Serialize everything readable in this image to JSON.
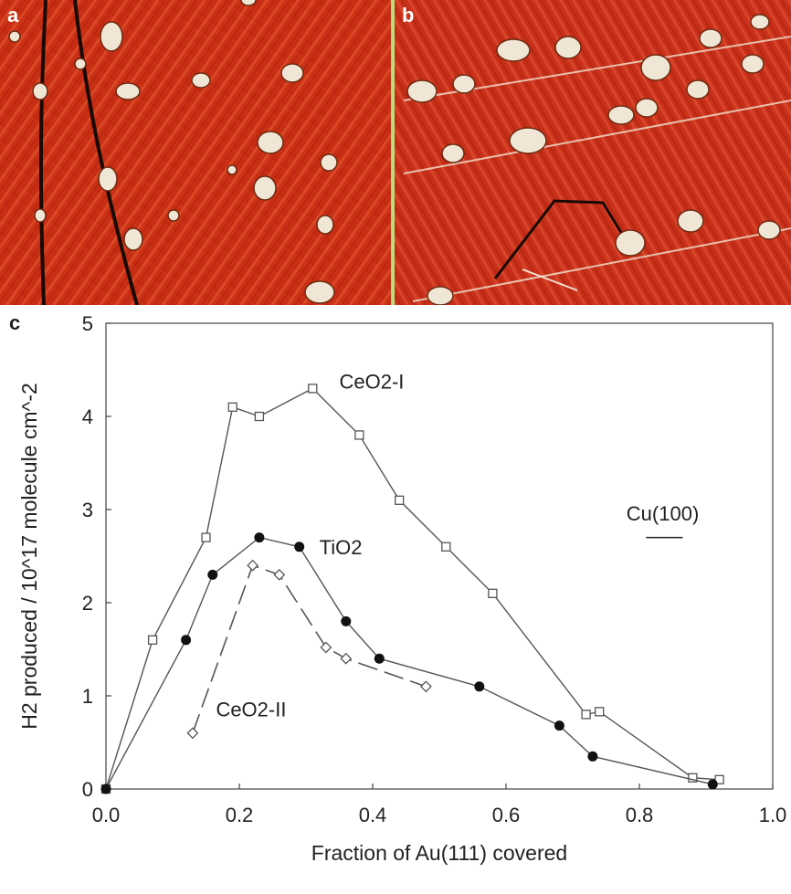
{
  "panels": {
    "a": "a",
    "b": "b",
    "c": "c"
  },
  "chart_data": {
    "type": "line",
    "xlabel": "Fraction of Au(111) covered",
    "ylabel": "H2 produced / 10^17 molecule cm^-2",
    "xlim": [
      0,
      1
    ],
    "ylim": [
      0,
      5
    ],
    "xticks": [
      "0.0",
      "0.2",
      "0.4",
      "0.6",
      "0.8",
      "1.0"
    ],
    "yticks": [
      "0",
      "1",
      "2",
      "3",
      "4",
      "5"
    ],
    "series": [
      {
        "name": "CeO2-I",
        "marker": "open-square",
        "line": "solid",
        "x": [
          0.0,
          0.07,
          0.15,
          0.19,
          0.23,
          0.31,
          0.38,
          0.44,
          0.51,
          0.58,
          0.72,
          0.74,
          0.88,
          0.92
        ],
        "y": [
          0.0,
          1.6,
          2.7,
          4.1,
          4.0,
          4.3,
          3.8,
          3.1,
          2.6,
          2.1,
          0.8,
          0.83,
          0.12,
          0.1
        ]
      },
      {
        "name": "TiO2",
        "marker": "filled-circle",
        "line": "solid",
        "x": [
          0.0,
          0.12,
          0.16,
          0.23,
          0.29,
          0.36,
          0.41,
          0.56,
          0.68,
          0.73,
          0.91
        ],
        "y": [
          0.0,
          1.6,
          2.3,
          2.7,
          2.6,
          1.8,
          1.4,
          1.1,
          0.68,
          0.35,
          0.05
        ]
      },
      {
        "name": "CeO2-II",
        "marker": "open-diamond",
        "line": "dashed",
        "x": [
          0.13,
          0.22,
          0.26,
          0.33,
          0.36,
          0.48
        ],
        "y": [
          0.6,
          2.4,
          2.3,
          1.52,
          1.4,
          1.1
        ]
      }
    ],
    "annotations": {
      "cu": "Cu(100)"
    }
  }
}
